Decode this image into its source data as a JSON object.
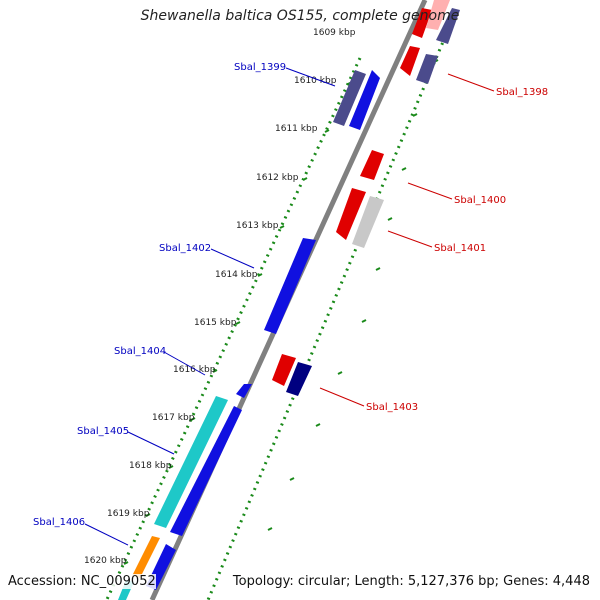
{
  "title": "Shewanella baltica OS155, complete genome",
  "footer": {
    "accession": "Accession: NC_009052",
    "summary": "Topology: circular; Length: 5,127,376 bp; Genes: 4,448"
  },
  "colors": {
    "backbone": "#808080",
    "left_label": "#0000c0",
    "right_label": "#cc0000",
    "dotted_track": "#1a8a1a"
  },
  "kbp_labels": [
    "1609 kbp",
    "1610 kbp",
    "1611 kbp",
    "1612 kbp",
    "1613 kbp",
    "1614 kbp",
    "1615 kbp",
    "1616 kbp",
    "1617 kbp",
    "1618 kbp",
    "1619 kbp",
    "1620 kbp"
  ],
  "left_gene_labels": [
    "Sbal_1399",
    "Sbal_1402",
    "Sbal_1404",
    "Sbal_1405",
    "Sbal_1406"
  ],
  "right_gene_labels": [
    "Sbal_1398",
    "Sbal_1400",
    "Sbal_1401",
    "Sbal_1403"
  ]
}
